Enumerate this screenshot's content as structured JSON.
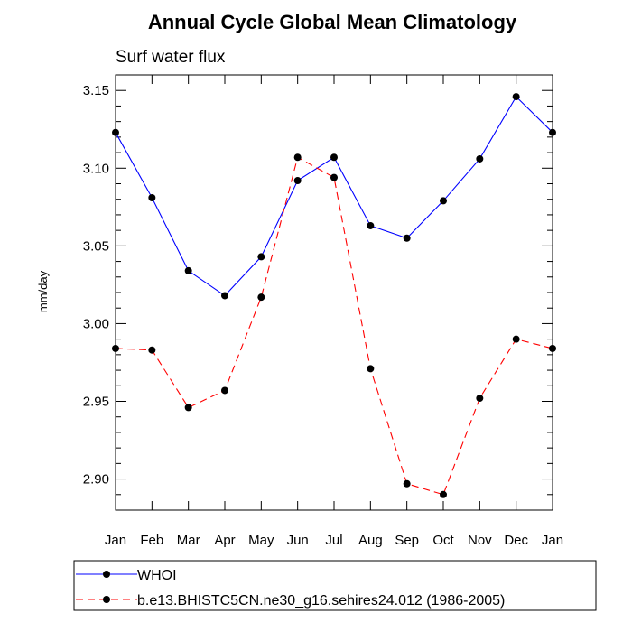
{
  "chart_data": {
    "type": "line",
    "title": "Annual Cycle Global Mean Climatology",
    "subtitle": "Surf water flux",
    "xlabel": "",
    "ylabel": "mm/day",
    "categories": [
      "Jan",
      "Feb",
      "Mar",
      "Apr",
      "May",
      "Jun",
      "Jul",
      "Aug",
      "Sep",
      "Oct",
      "Nov",
      "Dec",
      "Jan"
    ],
    "ylim": [
      2.88,
      3.16
    ],
    "yticks": [
      "2.90",
      "2.95",
      "3.00",
      "3.05",
      "3.10",
      "3.15"
    ],
    "grid": false,
    "legend_position": "bottom",
    "series": [
      {
        "name": "WHOI",
        "color": "#0000ff",
        "line_style": "solid",
        "marker": "filled-circle",
        "values": [
          3.123,
          3.081,
          3.034,
          3.018,
          3.043,
          3.092,
          3.107,
          3.063,
          3.055,
          3.079,
          3.106,
          3.146,
          3.123
        ]
      },
      {
        "name": "b.e13.BHISTC5CN.ne30_g16.sehires24.012 (1986-2005)",
        "color": "#ff0000",
        "line_style": "dashed",
        "marker": "filled-circle",
        "values": [
          2.984,
          2.983,
          2.946,
          2.957,
          3.017,
          3.107,
          3.094,
          2.971,
          2.897,
          2.89,
          2.952,
          2.99,
          2.984
        ]
      }
    ]
  }
}
